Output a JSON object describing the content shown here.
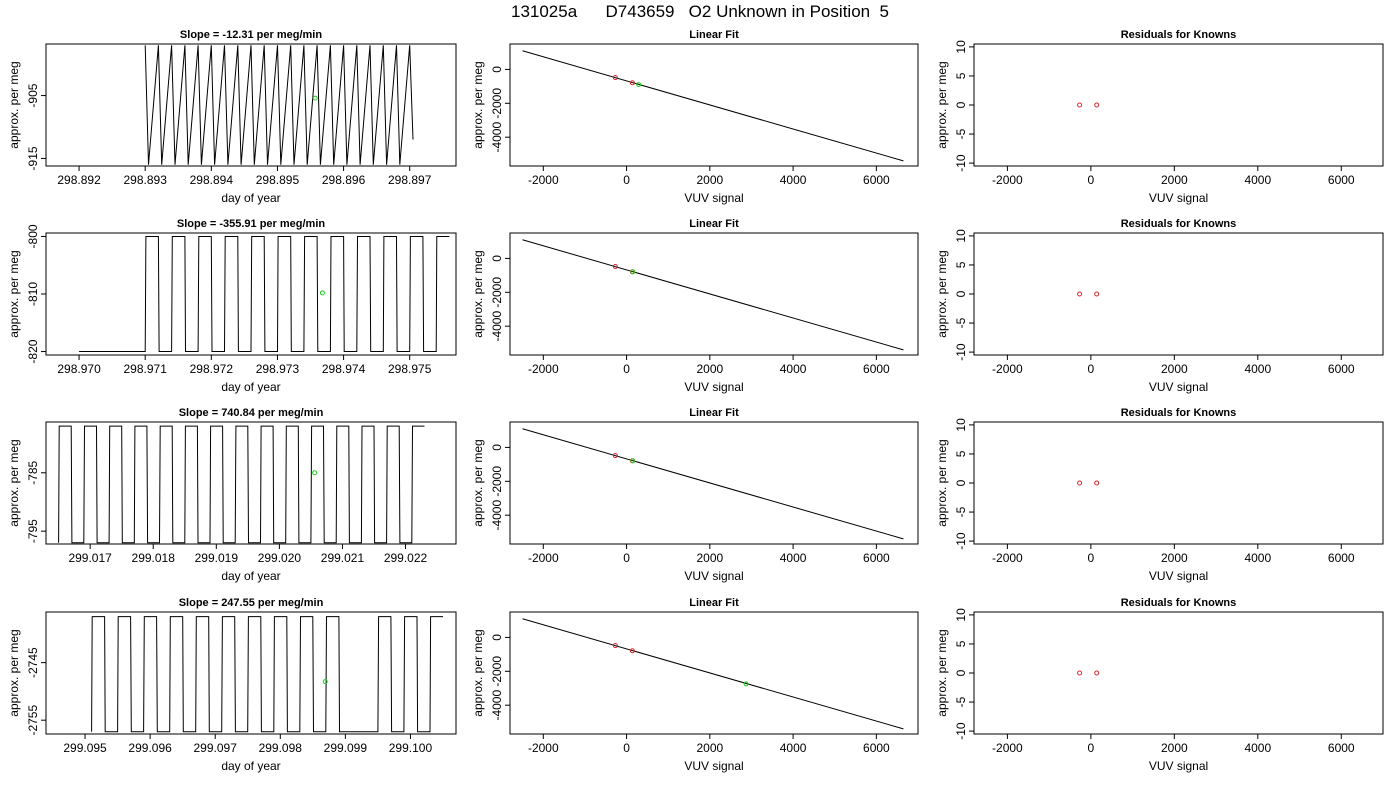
{
  "title": "131025a      D743659   O2 Unknown in Position  5",
  "colors": {
    "line": "#000000",
    "marker_known": "#d62728",
    "marker_unknown": "#22cc22"
  },
  "chart_data": [
    {
      "type": "line",
      "row": 1,
      "panel": "time",
      "title": "Slope =  -12.31  per meg/min",
      "xlabel": "day of year",
      "ylabel": "approx. per meg",
      "xlim": [
        298.8915,
        298.8977
      ],
      "ylim": [
        -916.2,
        -896.8
      ],
      "xticks": [
        298.892,
        298.893,
        298.894,
        298.895,
        298.896,
        298.897
      ],
      "xtick_labels": [
        "298.892",
        "298.893",
        "298.894",
        "298.895",
        "298.896",
        "298.897"
      ],
      "yticks": [
        -905,
        -915
      ],
      "ytick_labels": [
        "-905",
        "-915"
      ],
      "series": [
        {
          "x": [
            298.893,
            298.89305,
            298.8932,
            298.89325,
            298.8934,
            298.89345,
            298.8936,
            298.89365,
            298.8938,
            298.89385,
            298.894,
            298.89405,
            298.8942,
            298.89425,
            298.8944,
            298.89445,
            298.8946,
            298.89465,
            298.8948,
            298.89485,
            298.895,
            298.89505,
            298.8952,
            298.89525,
            298.8954,
            298.89545,
            298.8956,
            298.89565,
            298.8958,
            298.89585,
            298.896,
            298.89605,
            298.8962,
            298.89625,
            298.8964,
            298.89645,
            298.8966,
            298.89665,
            298.8968,
            298.89685,
            298.897,
            298.89705
          ],
          "y": [
            -897,
            -916,
            -897,
            -916,
            -897,
            -916,
            -897,
            -916,
            -897,
            -916,
            -897,
            -916,
            -897,
            -916,
            -897,
            -916,
            -897,
            -916,
            -897,
            -916,
            -897,
            -916,
            -897,
            -916,
            -897,
            -916,
            -897,
            -916,
            -897,
            -916,
            -897,
            -916,
            -897,
            -916,
            -897,
            -916,
            -897,
            -916,
            -897,
            -916,
            -897,
            -912
          ]
        }
      ],
      "highlight": {
        "x": 298.89557,
        "y": -905.4
      }
    },
    {
      "type": "scatter",
      "row": 1,
      "panel": "fit",
      "title": "Linear Fit",
      "xlabel": "VUV signal",
      "ylabel": "approx. per meg",
      "xlim": [
        -2800,
        7000
      ],
      "ylim": [
        -5700,
        1500
      ],
      "xticks": [
        -2000,
        0,
        2000,
        4000,
        6000
      ],
      "xtick_labels": [
        "-2000",
        "0",
        "2000",
        "4000",
        "6000"
      ],
      "yticks": [
        0,
        -2000,
        -4000
      ],
      "ytick_labels": [
        "0",
        "-2000",
        "-4000"
      ],
      "fit_line": [
        [
          -2500,
          1100
        ],
        [
          6650,
          -5400
        ]
      ],
      "known_points": [
        {
          "x": -270,
          "y": -480
        },
        {
          "x": 140,
          "y": -790
        }
      ],
      "unknown_points": [
        {
          "x": 290,
          "y": -900
        }
      ]
    },
    {
      "type": "scatter",
      "row": 1,
      "panel": "residuals",
      "title": "Residuals for Knowns",
      "xlabel": "VUV signal",
      "ylabel": "approx. per meg",
      "xlim": [
        -2800,
        7000
      ],
      "ylim": [
        -10.5,
        10.5
      ],
      "xticks": [
        -2000,
        0,
        2000,
        4000,
        6000
      ],
      "xtick_labels": [
        "-2000",
        "0",
        "2000",
        "4000",
        "6000"
      ],
      "yticks": [
        10,
        5,
        0,
        -5,
        -10
      ],
      "ytick_labels": [
        "10",
        "5",
        "0",
        "-5",
        "-10"
      ],
      "known_points": [
        {
          "x": -270,
          "y": 0
        },
        {
          "x": 140,
          "y": 0
        }
      ]
    },
    {
      "type": "line",
      "row": 2,
      "panel": "time",
      "title": "Slope =  -355.91  per meg/min",
      "xlabel": "day of year",
      "ylabel": "approx. per meg",
      "xlim": [
        298.9695,
        298.9757
      ],
      "ylim": [
        -820.6,
        -799.4
      ],
      "xticks": [
        298.97,
        298.971,
        298.972,
        298.973,
        298.974,
        298.975
      ],
      "xtick_labels": [
        "298.970",
        "298.971",
        "298.972",
        "298.973",
        "298.974",
        "298.975"
      ],
      "yticks": [
        -800,
        -810,
        -820
      ],
      "ytick_labels": [
        "-800",
        "-810",
        "-820"
      ],
      "series": [
        {
          "x": [
            298.97,
            298.971,
            298.97101,
            298.9712,
            298.97121,
            298.9714,
            298.97141,
            298.9716,
            298.97161,
            298.9718,
            298.97181,
            298.972,
            298.97201,
            298.9722,
            298.97221,
            298.9724,
            298.97241,
            298.9726,
            298.97261,
            298.9728,
            298.97281,
            298.973,
            298.97301,
            298.9732,
            298.97321,
            298.9734,
            298.97341,
            298.9736,
            298.97361,
            298.9738,
            298.97381,
            298.974,
            298.97401,
            298.9742,
            298.97421,
            298.9744,
            298.97441,
            298.9746,
            298.97461,
            298.9748,
            298.97481,
            298.975,
            298.97501,
            298.9752,
            298.97521,
            298.9754,
            298.97541,
            298.9756
          ],
          "y": [
            -820,
            -820,
            -800,
            -800,
            -820,
            -820,
            -800,
            -800,
            -820,
            -820,
            -800,
            -800,
            -820,
            -820,
            -800,
            -800,
            -820,
            -820,
            -800,
            -800,
            -820,
            -820,
            -800,
            -800,
            -820,
            -820,
            -800,
            -800,
            -820,
            -820,
            -800,
            -800,
            -820,
            -820,
            -800,
            -800,
            -820,
            -820,
            -800,
            -800,
            -820,
            -820,
            -800,
            -800,
            -820,
            -820,
            -800,
            -800
          ]
        }
      ],
      "highlight": {
        "x": 298.97368,
        "y": -809.8
      }
    },
    {
      "type": "scatter",
      "row": 2,
      "panel": "fit",
      "title": "Linear Fit",
      "xlabel": "VUV signal",
      "ylabel": "approx. per meg",
      "xlim": [
        -2800,
        7000
      ],
      "ylim": [
        -5700,
        1500
      ],
      "xticks": [
        -2000,
        0,
        2000,
        4000,
        6000
      ],
      "xtick_labels": [
        "-2000",
        "0",
        "2000",
        "4000",
        "6000"
      ],
      "yticks": [
        0,
        -2000,
        -4000
      ],
      "ytick_labels": [
        "0",
        "-2000",
        "-4000"
      ],
      "fit_line": [
        [
          -2500,
          1100
        ],
        [
          6650,
          -5400
        ]
      ],
      "known_points": [
        {
          "x": -270,
          "y": -480
        },
        {
          "x": 140,
          "y": -790
        }
      ],
      "unknown_points": [
        {
          "x": 150,
          "y": -790
        }
      ]
    },
    {
      "type": "scatter",
      "row": 2,
      "panel": "residuals",
      "title": "Residuals for Knowns",
      "xlabel": "VUV signal",
      "ylabel": "approx. per meg",
      "xlim": [
        -2800,
        7000
      ],
      "ylim": [
        -10.5,
        10.5
      ],
      "xticks": [
        -2000,
        0,
        2000,
        4000,
        6000
      ],
      "xtick_labels": [
        "-2000",
        "0",
        "2000",
        "4000",
        "6000"
      ],
      "yticks": [
        10,
        5,
        0,
        -5,
        -10
      ],
      "ytick_labels": [
        "10",
        "5",
        "0",
        "-5",
        "-10"
      ],
      "known_points": [
        {
          "x": -270,
          "y": 0
        },
        {
          "x": 140,
          "y": 0
        }
      ]
    },
    {
      "type": "line",
      "row": 3,
      "panel": "time",
      "title": "Slope =  740.84  per meg/min",
      "xlabel": "day of year",
      "ylabel": "approx. per meg",
      "xlim": [
        299.0163,
        299.0228
      ],
      "ylim": [
        -797.2,
        -776.3
      ],
      "xticks": [
        299.017,
        299.018,
        299.019,
        299.02,
        299.021,
        299.022
      ],
      "xtick_labels": [
        "299.017",
        "299.018",
        "299.019",
        "299.020",
        "299.021",
        "299.022"
      ],
      "yticks": [
        -785,
        -795
      ],
      "ytick_labels": [
        "-785",
        "-795"
      ],
      "series": [
        {
          "x": [
            299.0165,
            299.01651,
            299.0167,
            299.01671,
            299.0169,
            299.01691,
            299.0171,
            299.01711,
            299.0173,
            299.01731,
            299.0175,
            299.01751,
            299.0177,
            299.01771,
            299.0179,
            299.01791,
            299.0181,
            299.01811,
            299.0183,
            299.01831,
            299.0185,
            299.01851,
            299.0187,
            299.01871,
            299.0189,
            299.01891,
            299.0191,
            299.01911,
            299.0193,
            299.01931,
            299.0195,
            299.01951,
            299.0197,
            299.01971,
            299.0199,
            299.01991,
            299.0201,
            299.02011,
            299.0203,
            299.02031,
            299.0205,
            299.02051,
            299.0207,
            299.02071,
            299.0209,
            299.02091,
            299.0211,
            299.02111,
            299.0213,
            299.02131,
            299.0215,
            299.02151,
            299.0217,
            299.02171,
            299.0219,
            299.02191,
            299.0221,
            299.02211,
            299.0223
          ],
          "y": [
            -797,
            -777,
            -777,
            -797,
            -797,
            -777,
            -777,
            -797,
            -797,
            -777,
            -777,
            -797,
            -797,
            -777,
            -777,
            -797,
            -797,
            -777,
            -777,
            -797,
            -797,
            -777,
            -777,
            -797,
            -797,
            -777,
            -777,
            -797,
            -797,
            -777,
            -777,
            -797,
            -797,
            -777,
            -777,
            -797,
            -797,
            -777,
            -777,
            -797,
            -797,
            -777,
            -777,
            -797,
            -797,
            -777,
            -777,
            -797,
            -797,
            -777,
            -777,
            -797,
            -797,
            -777,
            -777,
            -797,
            -797,
            -777,
            -777
          ]
        }
      ],
      "highlight": {
        "x": 299.02056,
        "y": -785.0
      }
    },
    {
      "type": "scatter",
      "row": 3,
      "panel": "fit",
      "title": "Linear Fit",
      "xlabel": "VUV signal",
      "ylabel": "approx. per meg",
      "xlim": [
        -2800,
        7000
      ],
      "ylim": [
        -5700,
        1500
      ],
      "xticks": [
        -2000,
        0,
        2000,
        4000,
        6000
      ],
      "xtick_labels": [
        "-2000",
        "0",
        "2000",
        "4000",
        "6000"
      ],
      "yticks": [
        0,
        -2000,
        -4000
      ],
      "ytick_labels": [
        "0",
        "-2000",
        "-4000"
      ],
      "fit_line": [
        [
          -2500,
          1100
        ],
        [
          6650,
          -5400
        ]
      ],
      "known_points": [
        {
          "x": -270,
          "y": -480
        },
        {
          "x": 140,
          "y": -790
        }
      ],
      "unknown_points": [
        {
          "x": 150,
          "y": -790
        }
      ]
    },
    {
      "type": "scatter",
      "row": 3,
      "panel": "residuals",
      "title": "Residuals for Knowns",
      "xlabel": "VUV signal",
      "ylabel": "approx. per meg",
      "xlim": [
        -2800,
        7000
      ],
      "ylim": [
        -10.5,
        10.5
      ],
      "xticks": [
        -2000,
        0,
        2000,
        4000,
        6000
      ],
      "xtick_labels": [
        "-2000",
        "0",
        "2000",
        "4000",
        "6000"
      ],
      "yticks": [
        10,
        5,
        0,
        -5,
        -10
      ],
      "ytick_labels": [
        "10",
        "5",
        "0",
        "-5",
        "-10"
      ],
      "known_points": [
        {
          "x": -270,
          "y": 0
        },
        {
          "x": 140,
          "y": 0
        }
      ]
    },
    {
      "type": "line",
      "row": 4,
      "panel": "time",
      "title": "Slope =  247.55  per meg/min",
      "xlabel": "day of year",
      "ylabel": "approx. per meg",
      "xlim": [
        299.0944,
        299.1007
      ],
      "ylim": [
        -2757.4,
        -2736.2
      ],
      "xticks": [
        299.095,
        299.096,
        299.097,
        299.098,
        299.099,
        299.1
      ],
      "xtick_labels": [
        "299.095",
        "299.096",
        "299.097",
        "299.098",
        "299.099",
        "299.100"
      ],
      "yticks": [
        -2745,
        -2755
      ],
      "ytick_labels": [
        "-2745",
        "-2755"
      ],
      "series": [
        {
          "x": [
            299.0951,
            299.09511,
            299.0953,
            299.09531,
            299.0955,
            299.09551,
            299.0957,
            299.09571,
            299.0959,
            299.09591,
            299.0961,
            299.09611,
            299.0963,
            299.09631,
            299.0965,
            299.09651,
            299.0967,
            299.09671,
            299.0969,
            299.09691,
            299.0971,
            299.09711,
            299.0973,
            299.09731,
            299.0975,
            299.09751,
            299.0977,
            299.09771,
            299.0979,
            299.09791,
            299.0981,
            299.09811,
            299.0983,
            299.09831,
            299.0985,
            299.09851,
            299.0987,
            299.09871,
            299.0989,
            299.09891,
            299.0995,
            299.09951,
            299.0997,
            299.09971,
            299.0999,
            299.09991,
            299.1001,
            299.10011,
            299.1003,
            299.10031,
            299.1005
          ],
          "y": [
            -2757,
            -2737,
            -2737,
            -2757,
            -2757,
            -2737,
            -2737,
            -2757,
            -2757,
            -2737,
            -2737,
            -2757,
            -2757,
            -2737,
            -2737,
            -2757,
            -2757,
            -2737,
            -2737,
            -2757,
            -2757,
            -2737,
            -2737,
            -2757,
            -2757,
            -2737,
            -2737,
            -2757,
            -2757,
            -2737,
            -2737,
            -2757,
            -2757,
            -2737,
            -2737,
            -2757,
            -2757,
            -2737,
            -2737,
            -2757,
            -2757,
            -2737,
            -2737,
            -2757,
            -2757,
            -2737,
            -2737,
            -2757,
            -2757,
            -2737,
            -2737
          ]
        }
      ],
      "highlight": {
        "x": 299.09869,
        "y": -2748.3
      }
    },
    {
      "type": "scatter",
      "row": 4,
      "panel": "fit",
      "title": "Linear Fit",
      "xlabel": "VUV signal",
      "ylabel": "approx. per meg",
      "xlim": [
        -2800,
        7000
      ],
      "ylim": [
        -5700,
        1500
      ],
      "xticks": [
        -2000,
        0,
        2000,
        4000,
        6000
      ],
      "xtick_labels": [
        "-2000",
        "0",
        "2000",
        "4000",
        "6000"
      ],
      "yticks": [
        0,
        -2000,
        -4000
      ],
      "ytick_labels": [
        "0",
        "-2000",
        "-4000"
      ],
      "fit_line": [
        [
          -2500,
          1100
        ],
        [
          6650,
          -5400
        ]
      ],
      "known_points": [
        {
          "x": -270,
          "y": -480
        },
        {
          "x": 140,
          "y": -790
        }
      ],
      "unknown_points": [
        {
          "x": 2870,
          "y": -2745
        }
      ]
    },
    {
      "type": "scatter",
      "row": 4,
      "panel": "residuals",
      "title": "Residuals for Knowns",
      "xlabel": "VUV signal",
      "ylabel": "approx. per meg",
      "xlim": [
        -2800,
        7000
      ],
      "ylim": [
        -10.5,
        10.5
      ],
      "xticks": [
        -2000,
        0,
        2000,
        4000,
        6000
      ],
      "xtick_labels": [
        "-2000",
        "0",
        "2000",
        "4000",
        "6000"
      ],
      "yticks": [
        10,
        5,
        0,
        -5,
        -10
      ],
      "ytick_labels": [
        "10",
        "5",
        "0",
        "-5",
        "-10"
      ],
      "known_points": [
        {
          "x": -270,
          "y": 0
        },
        {
          "x": 140,
          "y": 0
        }
      ]
    }
  ]
}
